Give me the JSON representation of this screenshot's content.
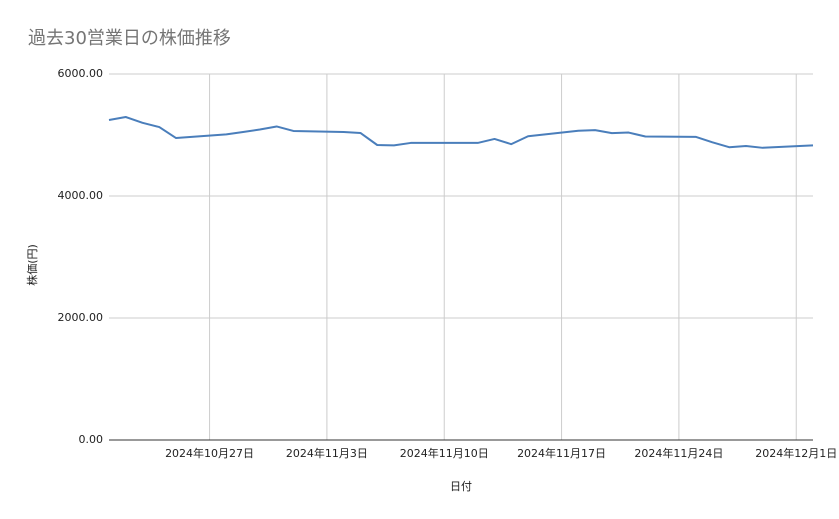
{
  "chart_data": {
    "type": "line",
    "title": "過去30営業日の株価推移",
    "x_label": "日付",
    "y_label": "株価(円)",
    "x": [
      "2024-10-21",
      "2024-10-22",
      "2024-10-23",
      "2024-10-24",
      "2024-10-25",
      "2024-10-28",
      "2024-10-29",
      "2024-10-30",
      "2024-10-31",
      "2024-11-01",
      "2024-11-04",
      "2024-11-05",
      "2024-11-06",
      "2024-11-07",
      "2024-11-08",
      "2024-11-11",
      "2024-11-12",
      "2024-11-13",
      "2024-11-14",
      "2024-11-15",
      "2024-11-18",
      "2024-11-19",
      "2024-11-20",
      "2024-11-21",
      "2024-11-22",
      "2024-11-25",
      "2024-11-26",
      "2024-11-27",
      "2024-11-28",
      "2024-11-29",
      "2024-12-02"
    ],
    "series": [
      {
        "name": "株価",
        "color": "#4a7ebb",
        "values": [
          5246,
          5295,
          5200,
          5130,
          4950,
          5010,
          5050,
          5090,
          5140,
          5066,
          5050,
          5033,
          4836,
          4830,
          4870,
          4870,
          4870,
          4935,
          4850,
          4980,
          5070,
          5080,
          5030,
          5040,
          4975,
          4970,
          4880,
          4800,
          4820,
          4790,
          4830
        ]
      }
    ],
    "xlim": [
      "2024-10-21",
      "2024-12-02"
    ],
    "xticks": [
      {
        "value": "2024-10-27",
        "label": "2024年10月27日"
      },
      {
        "value": "2024-11-03",
        "label": "2024年11月3日"
      },
      {
        "value": "2024-11-10",
        "label": "2024年11月10日"
      },
      {
        "value": "2024-11-17",
        "label": "2024年11月17日"
      },
      {
        "value": "2024-11-24",
        "label": "2024年11月24日"
      },
      {
        "value": "2024-12-01",
        "label": "2024年12月1日"
      }
    ],
    "ylim": [
      0,
      6000
    ],
    "yticks": [
      {
        "value": 0,
        "label": "0.00"
      },
      {
        "value": 2000,
        "label": "2000.00"
      },
      {
        "value": 4000,
        "label": "4000.00"
      },
      {
        "value": 6000,
        "label": "6000.00"
      }
    ],
    "grid": true
  }
}
